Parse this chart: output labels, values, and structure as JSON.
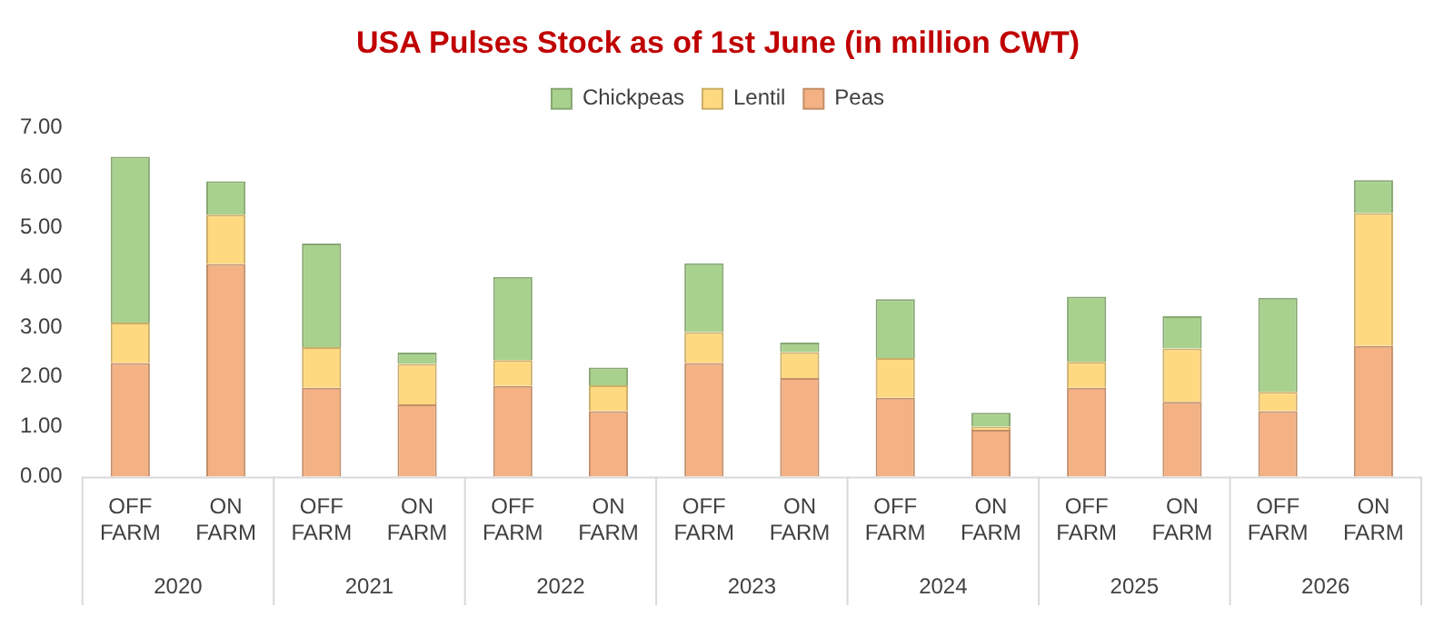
{
  "chart_data": {
    "type": "bar",
    "title": "USA Pulses Stock as of 1st June (in million CWT)",
    "stacked": true,
    "legend": "top",
    "grid": false,
    "categories": [
      "OFF FARM",
      "ON FARM",
      "OFF FARM",
      "ON FARM",
      "OFF FARM",
      "ON FARM",
      "OFF FARM",
      "ON FARM",
      "OFF FARM",
      "ON FARM",
      "OFF FARM",
      "ON FARM",
      "OFF FARM",
      "ON FARM"
    ],
    "annotations": [
      "2020",
      "2021",
      "2022",
      "2023",
      "2024",
      "2025",
      "2026"
    ],
    "ylim": [
      0,
      7
    ],
    "yticks": [
      {
        "value": 0,
        "label": "0.00"
      },
      {
        "value": 1,
        "label": "1.00"
      },
      {
        "value": 2,
        "label": "2.00"
      },
      {
        "value": 3,
        "label": "3.00"
      },
      {
        "value": 4,
        "label": "4.00"
      },
      {
        "value": 5,
        "label": "5.00"
      },
      {
        "value": 6,
        "label": "6.00"
      },
      {
        "value": 7,
        "label": "7.00"
      }
    ],
    "series": [
      {
        "name": "Peas",
        "color": "#f4b183",
        "values": [
          2.28,
          4.27,
          1.78,
          1.45,
          1.82,
          1.31,
          2.28,
          1.98,
          1.58,
          0.94,
          1.78,
          1.5,
          1.31,
          2.62
        ]
      },
      {
        "name": "Lentil",
        "color": "#ffd980",
        "values": [
          0.81,
          0.99,
          0.82,
          0.81,
          0.52,
          0.52,
          0.62,
          0.52,
          0.8,
          0.06,
          0.52,
          1.07,
          0.39,
          2.67
        ]
      },
      {
        "name": "Chickpeas",
        "color": "#a9d18e",
        "values": [
          3.33,
          0.67,
          2.08,
          0.23,
          1.67,
          0.36,
          1.38,
          0.19,
          1.18,
          0.28,
          1.31,
          0.65,
          1.89,
          0.66
        ]
      }
    ]
  }
}
